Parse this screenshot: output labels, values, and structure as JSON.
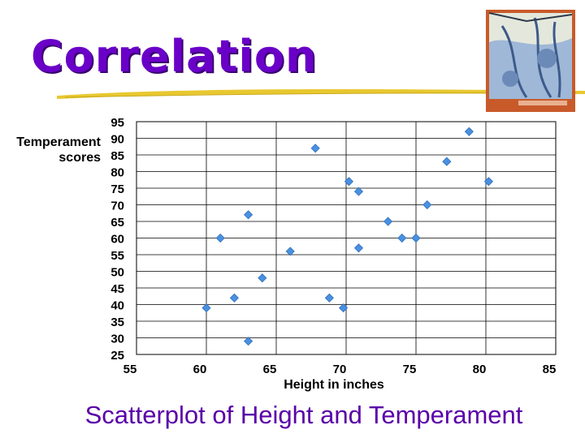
{
  "slide": {
    "title": "Correlation",
    "caption": "Scatterplot of Height and Temperament"
  },
  "colors": {
    "title": "#6a00c8",
    "caption": "#5a00a8",
    "marker": "#4a90e2",
    "underline": "#e8c830"
  },
  "chart_data": {
    "type": "scatter",
    "title": "",
    "xlabel": "Height in inches",
    "ylabel": "Temperament scores",
    "xlim": [
      55,
      85
    ],
    "ylim": [
      25,
      95
    ],
    "x_ticks": [
      55,
      60,
      65,
      70,
      75,
      80,
      85
    ],
    "y_ticks": [
      95,
      90,
      85,
      80,
      75,
      70,
      65,
      60,
      55,
      50,
      45,
      40,
      35,
      30,
      25
    ],
    "grid": true,
    "marker": "diamond",
    "points": [
      {
        "x": 60,
        "y": 39
      },
      {
        "x": 61,
        "y": 60
      },
      {
        "x": 62,
        "y": 42
      },
      {
        "x": 63,
        "y": 67
      },
      {
        "x": 63,
        "y": 29
      },
      {
        "x": 64,
        "y": 48
      },
      {
        "x": 66,
        "y": 56
      },
      {
        "x": 67.8,
        "y": 87
      },
      {
        "x": 68.8,
        "y": 42
      },
      {
        "x": 69.8,
        "y": 39
      },
      {
        "x": 70.2,
        "y": 77
      },
      {
        "x": 70.9,
        "y": 74
      },
      {
        "x": 70.9,
        "y": 57
      },
      {
        "x": 73,
        "y": 65
      },
      {
        "x": 74,
        "y": 60
      },
      {
        "x": 75,
        "y": 60
      },
      {
        "x": 75.8,
        "y": 70
      },
      {
        "x": 77.2,
        "y": 83
      },
      {
        "x": 78.8,
        "y": 92
      },
      {
        "x": 80.2,
        "y": 77
      }
    ]
  }
}
